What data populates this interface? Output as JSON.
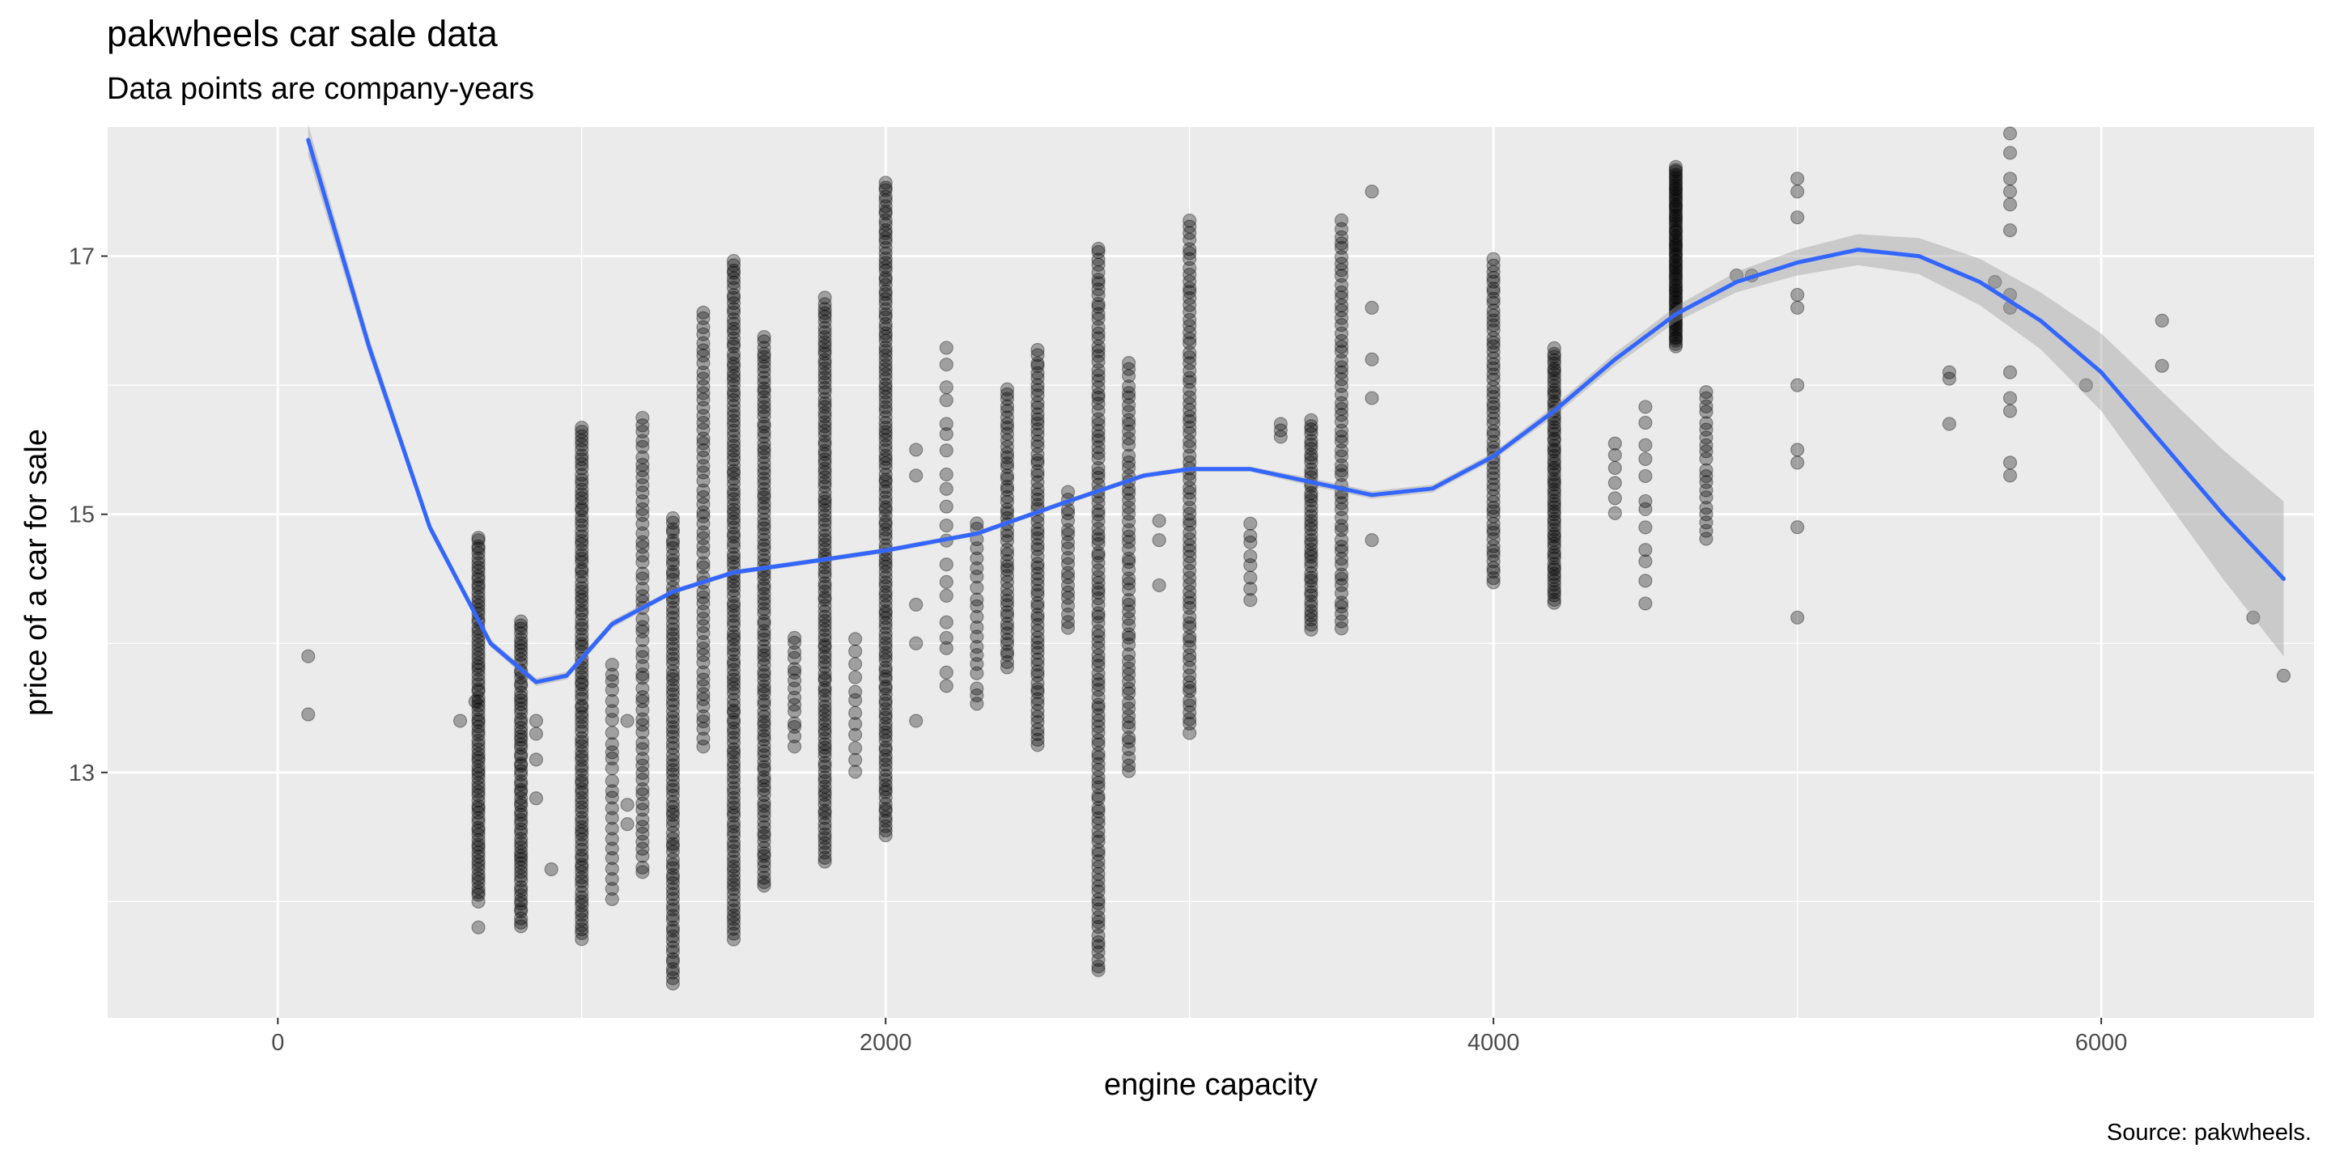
{
  "chart_data": {
    "type": "scatter",
    "title": "pakwheels car sale data",
    "subtitle": "Data points are company-years",
    "caption": "Source: pakwheels.",
    "xlabel": "engine capacity",
    "ylabel": "price of a car for sale",
    "xlim": [
      -560,
      6700
    ],
    "ylim": [
      11.1,
      18.0
    ],
    "x_ticks": [
      0,
      2000,
      4000,
      6000
    ],
    "x_tick_labels": [
      "0",
      "2000",
      "4000",
      "6000"
    ],
    "y_ticks": [
      13,
      15,
      17
    ],
    "y_tick_labels": [
      "13",
      "15",
      "17"
    ],
    "grid": true,
    "legend": "none",
    "colors": {
      "panel": "#ebebeb",
      "grid": "#ffffff",
      "points": "#000000",
      "smooth_line": "#3366ff",
      "ribbon": "#999999"
    },
    "columns": [
      {
        "x": 100,
        "values": [
          13.9,
          13.45
        ]
      },
      {
        "x": 600,
        "values": [
          13.4
        ]
      },
      {
        "x": 650,
        "values": [
          13.55
        ]
      },
      {
        "x": 660,
        "range": [
          12.0,
          14.85
        ],
        "n": 85,
        "values": [
          11.8
        ]
      },
      {
        "x": 800,
        "range": [
          11.8,
          14.2
        ],
        "n": 70
      },
      {
        "x": 850,
        "values": [
          13.1,
          13.3,
          12.8,
          13.4
        ]
      },
      {
        "x": 900,
        "values": [
          12.25
        ]
      },
      {
        "x": 1000,
        "range": [
          11.7,
          15.7
        ],
        "n": 110
      },
      {
        "x": 1100,
        "range": [
          12.0,
          13.9
        ],
        "n": 25
      },
      {
        "x": 1150,
        "values": [
          12.6,
          12.75,
          13.4
        ]
      },
      {
        "x": 1200,
        "range": [
          12.2,
          15.8
        ],
        "n": 60
      },
      {
        "x": 1300,
        "range": [
          11.35,
          15.0
        ],
        "n": 90
      },
      {
        "x": 1400,
        "range": [
          13.2,
          16.6
        ],
        "n": 60
      },
      {
        "x": 1500,
        "range": [
          11.7,
          17.0
        ],
        "n": 140
      },
      {
        "x": 1600,
        "range": [
          12.1,
          16.4
        ],
        "n": 110
      },
      {
        "x": 1700,
        "range": [
          13.2,
          14.1
        ],
        "n": 15
      },
      {
        "x": 1800,
        "range": [
          12.3,
          16.7
        ],
        "n": 120
      },
      {
        "x": 1900,
        "range": [
          12.95,
          14.1
        ],
        "n": 12
      },
      {
        "x": 2000,
        "range": [
          12.5,
          17.6
        ],
        "n": 140
      },
      {
        "x": 2100,
        "values": [
          15.5,
          15.3,
          13.4,
          14.0,
          14.3
        ]
      },
      {
        "x": 2200,
        "range": [
          13.6,
          16.4
        ],
        "n": 20
      },
      {
        "x": 2300,
        "range": [
          13.5,
          15.0
        ],
        "n": 20
      },
      {
        "x": 2400,
        "range": [
          13.8,
          16.0
        ],
        "n": 50
      },
      {
        "x": 2500,
        "range": [
          13.2,
          16.3
        ],
        "n": 70
      },
      {
        "x": 2600,
        "range": [
          14.1,
          15.2
        ],
        "n": 20
      },
      {
        "x": 2700,
        "range": [
          11.45,
          17.1
        ],
        "n": 120
      },
      {
        "x": 2800,
        "range": [
          13.0,
          16.2
        ],
        "n": 60
      },
      {
        "x": 2900,
        "values": [
          14.95,
          14.8,
          14.45
        ]
      },
      {
        "x": 3000,
        "range": [
          13.3,
          17.3
        ],
        "n": 80
      },
      {
        "x": 3200,
        "range": [
          14.3,
          15.0
        ],
        "n": 8
      },
      {
        "x": 3300,
        "values": [
          15.7,
          15.65,
          15.6
        ]
      },
      {
        "x": 3400,
        "range": [
          14.1,
          15.75
        ],
        "n": 45
      },
      {
        "x": 3500,
        "range": [
          14.1,
          17.3
        ],
        "n": 60
      },
      {
        "x": 3600,
        "values": [
          17.5,
          16.6,
          16.2,
          15.9,
          14.8
        ]
      },
      {
        "x": 4000,
        "range": [
          14.45,
          17.0
        ],
        "n": 60
      },
      {
        "x": 4200,
        "range": [
          14.3,
          16.3
        ],
        "n": 70
      },
      {
        "x": 4400,
        "range": [
          15.0,
          15.6
        ],
        "n": 6
      },
      {
        "x": 4500,
        "range": [
          14.3,
          15.9
        ],
        "n": 12
      },
      {
        "x": 4600,
        "range": [
          16.3,
          17.7
        ],
        "n": 80
      },
      {
        "x": 4700,
        "range": [
          14.8,
          16.0
        ],
        "n": 20
      },
      {
        "x": 4800,
        "values": [
          16.85
        ]
      },
      {
        "x": 4850,
        "values": [
          16.85
        ]
      },
      {
        "x": 5000,
        "values": [
          17.6,
          17.5,
          17.3,
          16.7,
          16.6,
          16.0,
          15.5,
          15.4,
          14.9,
          14.2
        ]
      },
      {
        "x": 5500,
        "values": [
          16.1,
          16.05,
          15.7
        ]
      },
      {
        "x": 5650,
        "values": [
          16.8
        ]
      },
      {
        "x": 5700,
        "values": [
          17.95,
          17.8,
          17.6,
          17.5,
          17.4,
          17.2,
          16.7,
          16.6,
          16.1,
          15.9,
          15.8,
          15.4,
          15.3
        ]
      },
      {
        "x": 5950,
        "values": [
          16.0
        ]
      },
      {
        "x": 6200,
        "values": [
          16.5,
          16.15
        ]
      },
      {
        "x": 6500,
        "values": [
          14.2
        ]
      },
      {
        "x": 6600,
        "values": [
          13.75
        ]
      }
    ],
    "smooth": {
      "x": [
        100,
        300,
        500,
        700,
        850,
        950,
        1100,
        1300,
        1500,
        1800,
        2000,
        2300,
        2600,
        2850,
        3000,
        3200,
        3400,
        3600,
        3800,
        4000,
        4200,
        4400,
        4600,
        4800,
        5000,
        5200,
        5400,
        5600,
        5800,
        6000,
        6200,
        6400,
        6600
      ],
      "y": [
        17.9,
        16.3,
        14.9,
        14.0,
        13.7,
        13.75,
        14.15,
        14.4,
        14.55,
        14.65,
        14.72,
        14.85,
        15.1,
        15.3,
        15.35,
        15.35,
        15.25,
        15.15,
        15.2,
        15.45,
        15.8,
        16.2,
        16.55,
        16.8,
        16.95,
        17.05,
        17.0,
        16.8,
        16.5,
        16.1,
        15.55,
        15.0,
        14.5
      ],
      "se": [
        0.12,
        0.07,
        0.04,
        0.03,
        0.03,
        0.03,
        0.03,
        0.02,
        0.02,
        0.02,
        0.02,
        0.02,
        0.02,
        0.02,
        0.02,
        0.02,
        0.03,
        0.03,
        0.03,
        0.03,
        0.04,
        0.05,
        0.06,
        0.08,
        0.1,
        0.12,
        0.14,
        0.18,
        0.22,
        0.3,
        0.4,
        0.5,
        0.6
      ]
    }
  }
}
